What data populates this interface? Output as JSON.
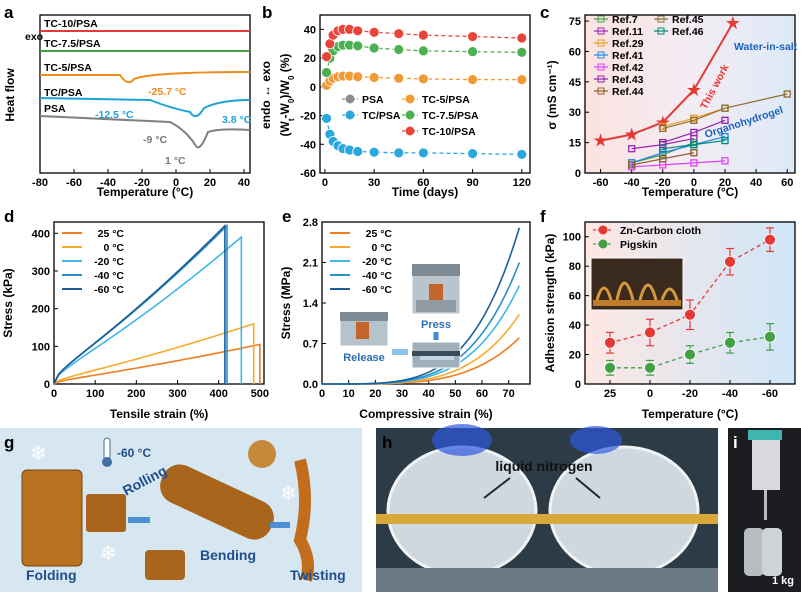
{
  "panels": {
    "a": {
      "label": "a",
      "xlabel": "Temperature (°C)",
      "ylabel": "Heat flow",
      "yarrow": "exo",
      "xticks": [
        "-80",
        "-60",
        "-40",
        "-20",
        "0",
        "20",
        "40"
      ],
      "curves": [
        {
          "name": "TC-10/PSA",
          "color": "#e53935"
        },
        {
          "name": "TC-7.5/PSA",
          "color": "#43a047"
        },
        {
          "name": "TC-5/PSA",
          "color": "#ef8a1e"
        },
        {
          "name": "TC/PSA",
          "color": "#1ea3d8"
        },
        {
          "name": "PSA",
          "color": "#808080"
        }
      ],
      "annotations": [
        "-25.7 °C",
        "-12.5 °C",
        "3.8 °C",
        "-9 °C",
        "1 °C"
      ]
    },
    "b": {
      "label": "b",
      "xlabel": "Time (days)",
      "ylabel": "(Wt-W0)/W0 (%)",
      "yaxis_side": "endo ↔ exo",
      "yticks": [
        "40",
        "20",
        "0",
        "-20",
        "-40",
        "-60"
      ],
      "xticks": [
        "0",
        "30",
        "60",
        "90",
        "120"
      ]
    },
    "c": {
      "label": "c",
      "xlabel": "Temperature (°C)",
      "ylabel": "σ (mS cm⁻¹)",
      "yticks": [
        "75",
        "60",
        "45",
        "30",
        "15",
        "0"
      ],
      "xticks": [
        "-60",
        "-40",
        "-20",
        "0",
        "20",
        "40",
        "60"
      ],
      "legend": [
        "Ref.7",
        "Ref.11",
        "Ref.29",
        "Ref.41",
        "Ref.42",
        "Ref.43",
        "Ref.44",
        "Ref.45",
        "Ref.46"
      ],
      "annotations": [
        "This work",
        "Water-in-salt",
        "Organohydrogel"
      ]
    },
    "d": {
      "label": "d",
      "xlabel": "Tensile strain (%)",
      "ylabel": "Stress (kPa)",
      "yticks": [
        "400",
        "300",
        "200",
        "100",
        "0"
      ],
      "xticks": [
        "0",
        "100",
        "200",
        "300",
        "400",
        "500"
      ]
    },
    "e": {
      "label": "e",
      "xlabel": "Compressive strain (%)",
      "ylabel": "Stress (MPa)",
      "yticks": [
        "2.8",
        "2.1",
        "1.4",
        "0.7",
        "0.0"
      ],
      "xticks": [
        "0",
        "10",
        "20",
        "30",
        "40",
        "50",
        "60",
        "70"
      ],
      "photo_labels": [
        "Press",
        "Release"
      ]
    },
    "f": {
      "label": "f",
      "xlabel": "Temperature (°C)",
      "ylabel": "Adhesion strength (kPa)",
      "yticks": [
        "100",
        "80",
        "60",
        "40",
        "20",
        "0"
      ],
      "xticks": [
        "20",
        "0",
        "-20",
        "-40",
        "-60"
      ]
    },
    "g": {
      "label": "g",
      "temp": "-60 °C",
      "steps": [
        "Folding",
        "Rolling",
        "Bending",
        "Twisting"
      ]
    },
    "h": {
      "label": "h",
      "text": "liquid nitrogen"
    },
    "i": {
      "label": "i",
      "weight": "1 kg"
    }
  },
  "temp_legend": [
    "25 °C",
    "0 °C",
    "-20 °C",
    "-40 °C",
    "-60 °C"
  ],
  "temp_colors": [
    "#f07d1f",
    "#f6ad2c",
    "#3fb7e8",
    "#2a8fc4",
    "#1f5d96"
  ],
  "chart_data": [
    {
      "panel": "b",
      "type": "scatter",
      "xlabel": "Time (days)",
      "ylim": [
        -60,
        50
      ],
      "xlim": [
        -3,
        125
      ],
      "series": [
        {
          "name": "PSA",
          "color": "#8c8c8c",
          "x": [],
          "y": []
        },
        {
          "name": "TC/PSA",
          "color": "#29a8de",
          "x": [
            1,
            3,
            5,
            8,
            11,
            15,
            20,
            30,
            45,
            60,
            90,
            120
          ],
          "y": [
            -22,
            -33,
            -38,
            -41,
            -43,
            -44,
            -45,
            -45.5,
            -46,
            -46,
            -46.5,
            -47
          ]
        },
        {
          "name": "TC-5/PSA",
          "color": "#f09a35",
          "x": [
            1,
            3,
            5,
            8,
            11,
            15,
            20,
            30,
            45,
            60,
            90,
            120
          ],
          "y": [
            1,
            4,
            6,
            7,
            7.5,
            7.5,
            7,
            6.5,
            6,
            5.5,
            5,
            5
          ]
        },
        {
          "name": "TC-7.5/PSA",
          "color": "#4caf50",
          "x": [
            1,
            3,
            5,
            8,
            11,
            15,
            20,
            30,
            45,
            60,
            90,
            120
          ],
          "y": [
            10,
            20,
            25,
            28,
            29,
            29,
            28.5,
            27,
            26,
            25,
            24.5,
            24
          ]
        },
        {
          "name": "TC-10/PSA",
          "color": "#e8443a",
          "x": [
            1,
            3,
            5,
            8,
            11,
            15,
            20,
            30,
            45,
            60,
            90,
            120
          ],
          "y": [
            21,
            30,
            36,
            39,
            40,
            40,
            39,
            38,
            37,
            36,
            35,
            34
          ]
        }
      ]
    },
    {
      "panel": "c",
      "type": "scatter",
      "xlim": [
        -70,
        65
      ],
      "ylim": [
        0,
        78
      ],
      "series": [
        {
          "name": "This work",
          "color": "#e53935",
          "x": [
            -60,
            -40,
            -20,
            0,
            25
          ],
          "y": [
            16,
            19,
            25,
            41,
            74
          ]
        },
        {
          "name": "Ref.7",
          "color": "#43a047",
          "x": [
            -40,
            -20,
            0
          ],
          "y": [
            5,
            9,
            15
          ]
        },
        {
          "name": "Ref.11",
          "color": "#9c27b0",
          "x": [
            -40,
            -20,
            0
          ],
          "y": [
            12,
            14,
            17
          ]
        },
        {
          "name": "Ref.29",
          "color": "#f0a020",
          "x": [
            -20,
            0,
            20
          ],
          "y": [
            23,
            27,
            32
          ]
        },
        {
          "name": "Ref.41",
          "color": "#1e88e5",
          "x": [
            -40,
            -20,
            0,
            20
          ],
          "y": [
            5,
            10,
            14,
            18
          ]
        },
        {
          "name": "Ref.42",
          "color": "#e040fb",
          "x": [
            -40,
            -20,
            0,
            20
          ],
          "y": [
            3,
            4,
            5,
            6
          ]
        },
        {
          "name": "Ref.43",
          "color": "#8e24aa",
          "x": [
            -20,
            0,
            20
          ],
          "y": [
            15,
            20,
            26
          ]
        },
        {
          "name": "Ref.44",
          "color": "#8b5a2b",
          "x": [
            -40,
            -20,
            0
          ],
          "y": [
            4,
            7,
            10
          ]
        },
        {
          "name": "Ref.45",
          "color": "#8d6e30",
          "x": [
            -20,
            0,
            20,
            60
          ],
          "y": [
            22,
            26,
            32,
            39
          ]
        },
        {
          "name": "Ref.46",
          "color": "#00897b",
          "x": [
            -20,
            0,
            20
          ],
          "y": [
            12,
            14,
            16
          ]
        }
      ]
    },
    {
      "panel": "d",
      "type": "line",
      "xlim": [
        0,
        510
      ],
      "ylim": [
        0,
        430
      ],
      "series": [
        {
          "name": "25 °C",
          "break_strain": 500,
          "break_stress": 105
        },
        {
          "name": "0 °C",
          "break_strain": 485,
          "break_stress": 160
        },
        {
          "name": "-20 °C",
          "break_strain": 455,
          "break_stress": 390
        },
        {
          "name": "-40 °C",
          "break_strain": 420,
          "break_stress": 420
        },
        {
          "name": "-60 °C",
          "break_strain": 415,
          "break_stress": 420
        }
      ]
    },
    {
      "panel": "e",
      "type": "line",
      "xlim": [
        0,
        78
      ],
      "ylim": [
        0,
        2.8
      ],
      "series": [
        {
          "name": "25 °C",
          "max_strain": 74,
          "max_stress": 0.8
        },
        {
          "name": "0 °C",
          "max_strain": 74,
          "max_stress": 1.2
        },
        {
          "name": "-20 °C",
          "max_strain": 74,
          "max_stress": 1.7
        },
        {
          "name": "-40 °C",
          "max_strain": 74,
          "max_stress": 2.1
        },
        {
          "name": "-60 °C",
          "max_strain": 74,
          "max_stress": 2.7
        }
      ]
    },
    {
      "panel": "f",
      "type": "scatter",
      "categories": [
        "25",
        "0",
        "-20",
        "-40",
        "-60"
      ],
      "ylim": [
        0,
        110
      ],
      "series": [
        {
          "name": "Zn-Carbon cloth",
          "color": "#e53935",
          "values": [
            28,
            35,
            47,
            83,
            98
          ],
          "err": [
            7,
            9,
            10,
            9,
            8
          ]
        },
        {
          "name": "Pigskin",
          "color": "#43a047",
          "values": [
            11,
            11,
            20,
            28,
            32
          ],
          "err": [
            5,
            5,
            6,
            7,
            9
          ]
        }
      ]
    }
  ]
}
